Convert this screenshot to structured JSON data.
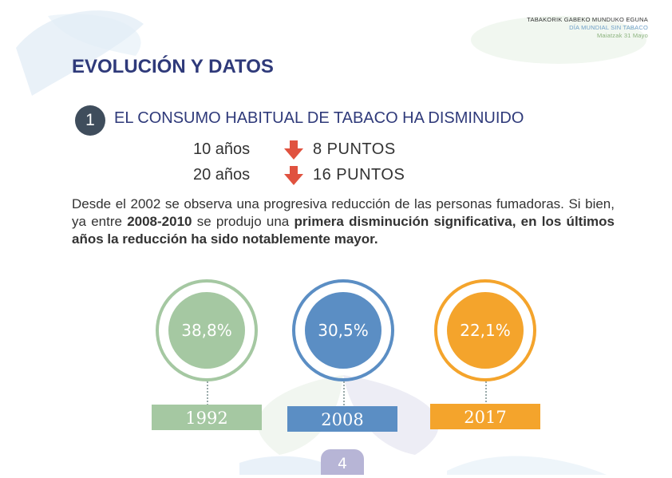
{
  "header": {
    "line1": "TABAKORIK GABEKO MUNDUKO EGUNA",
    "line2": "DÍA MUNDIAL SIN TABACO",
    "line3": "Maiatzak 31 Mayo"
  },
  "section": {
    "title": "EVOLUCIÓN Y DATOS",
    "number": "1",
    "headline": "EL CONSUMO HABITUAL DE TABACO HA DISMINUIDO"
  },
  "decreases": [
    {
      "period": "10 años",
      "points": "8 PUNTOS"
    },
    {
      "period": "20 años",
      "points": "16 PUNTOS"
    }
  ],
  "paragraph": {
    "text1": "Desde el 2002 se observa una progresiva reducción de las personas fumadoras. Si bien, ya entre ",
    "bold1": "2008-2010",
    "text2": " se produjo una ",
    "bold2": "primera disminución significativa, en los últimos años la reducción ha sido notablemente mayor."
  },
  "stats": [
    {
      "value": "38,8%",
      "year": "1992",
      "color": "#a5c8a2"
    },
    {
      "value": "30,5%",
      "year": "2008",
      "color": "#5b8ec4"
    },
    {
      "value": "22,1%",
      "year": "2017",
      "color": "#f4a42c"
    }
  ],
  "page_number": "4",
  "colors": {
    "title": "#2f3a7a",
    "arrow": "#e0523f"
  }
}
